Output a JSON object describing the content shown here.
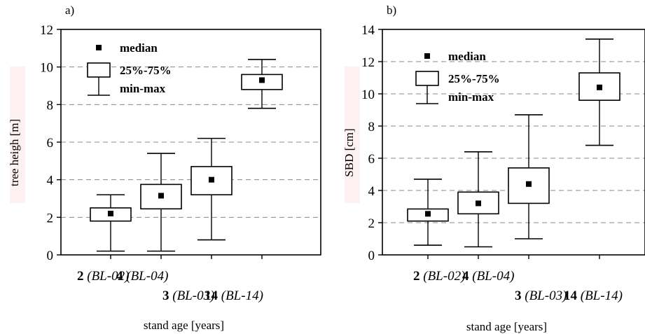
{
  "chart_data": [
    {
      "type": "box",
      "panel_label": "a)",
      "ylabel": "tree heigh [m]",
      "xlabel": "stand age [years]",
      "ylim": [
        0,
        12
      ],
      "yticks": [
        "0",
        "2",
        "4",
        "6",
        "8",
        "10",
        "12"
      ],
      "grid": "dashed horizontal at each tick",
      "legend_placement": "top-left",
      "legend": {
        "median": "median",
        "box": "25%-75%",
        "whisker": "min-max"
      },
      "categories": [
        {
          "num": "2",
          "code": "(BL-02)",
          "min": 0.2,
          "q1": 1.8,
          "median": 2.2,
          "q3": 2.5,
          "max": 3.2
        },
        {
          "num": "3",
          "code": "(BL-03)",
          "min": 0.2,
          "q1": 2.45,
          "median": 3.15,
          "q3": 3.75,
          "max": 5.4
        },
        {
          "num": "4",
          "code": "(BL-04)",
          "min": 0.8,
          "q1": 3.2,
          "median": 4.0,
          "q3": 4.7,
          "max": 6.2
        },
        {
          "num": "14",
          "code": "(BL-14)",
          "min": 7.8,
          "q1": 8.8,
          "median": 9.3,
          "q3": 9.6,
          "max": 10.4
        }
      ]
    },
    {
      "type": "box",
      "panel_label": "b)",
      "ylabel": "SBD [cm]",
      "xlabel": "stand age [years]",
      "ylim": [
        0,
        14
      ],
      "yticks": [
        "0",
        "2",
        "4",
        "6",
        "8",
        "10",
        "12",
        "14"
      ],
      "grid": "dashed horizontal at each tick",
      "legend_placement": "top-left",
      "legend": {
        "median": "median",
        "box": "25%-75%",
        "whisker": "min-max"
      },
      "categories": [
        {
          "num": "2",
          "code": "(BL-02)",
          "min": 0.6,
          "q1": 2.1,
          "median": 2.55,
          "q3": 2.85,
          "max": 4.7
        },
        {
          "num": "3",
          "code": "(BL-03)",
          "min": 0.5,
          "q1": 2.55,
          "median": 3.2,
          "q3": 3.9,
          "max": 6.4
        },
        {
          "num": "4",
          "code": "(BL-04)",
          "min": 1.0,
          "q1": 3.2,
          "median": 4.4,
          "q3": 5.4,
          "max": 8.7
        },
        {
          "num": "14",
          "code": "(BL-14)",
          "min": 6.8,
          "q1": 9.6,
          "median": 10.4,
          "q3": 11.3,
          "max": 13.4
        }
      ]
    }
  ]
}
